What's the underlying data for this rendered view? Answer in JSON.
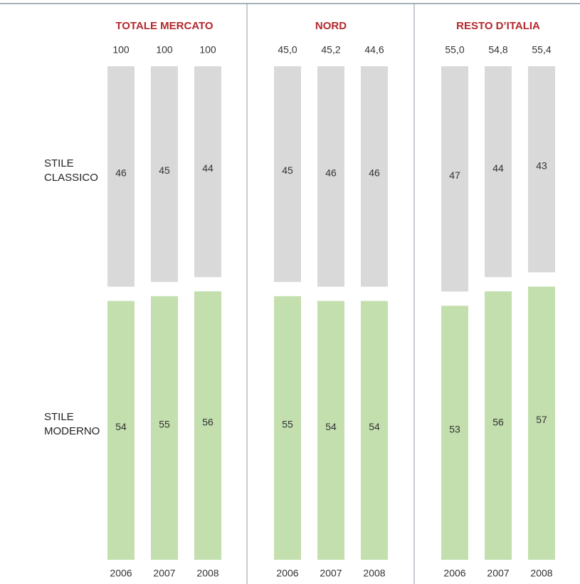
{
  "chart_data": {
    "type": "bar",
    "stacked": true,
    "series": [
      {
        "name": "STILE CLASSICO",
        "color": "#d9d9d9"
      },
      {
        "name": "STILE MODERNO",
        "color": "#c3dfae"
      }
    ],
    "title_color": "#b3282d",
    "panels": [
      {
        "title": "TOTALE MERCATO",
        "categories": [
          "2006",
          "2007",
          "2008"
        ],
        "totals": [
          100,
          100,
          100
        ],
        "values": [
          [
            46,
            45,
            44
          ],
          [
            54,
            55,
            56
          ]
        ]
      },
      {
        "title": "NORD",
        "categories": [
          "2006",
          "2007",
          "2008"
        ],
        "totals": [
          45.0,
          45.2,
          44.6
        ],
        "total_labels": [
          "45,0",
          "45,2",
          "44,6"
        ],
        "values": [
          [
            45,
            46,
            46
          ],
          [
            55,
            54,
            54
          ]
        ]
      },
      {
        "title": "RESTO D’ITALIA",
        "categories": [
          "2006",
          "2007",
          "2008"
        ],
        "totals": [
          55.0,
          54.8,
          55.4
        ],
        "total_labels": [
          "55,0",
          "54,8",
          "55,4"
        ],
        "values": [
          [
            47,
            44,
            43
          ],
          [
            53,
            56,
            57
          ]
        ]
      }
    ]
  }
}
